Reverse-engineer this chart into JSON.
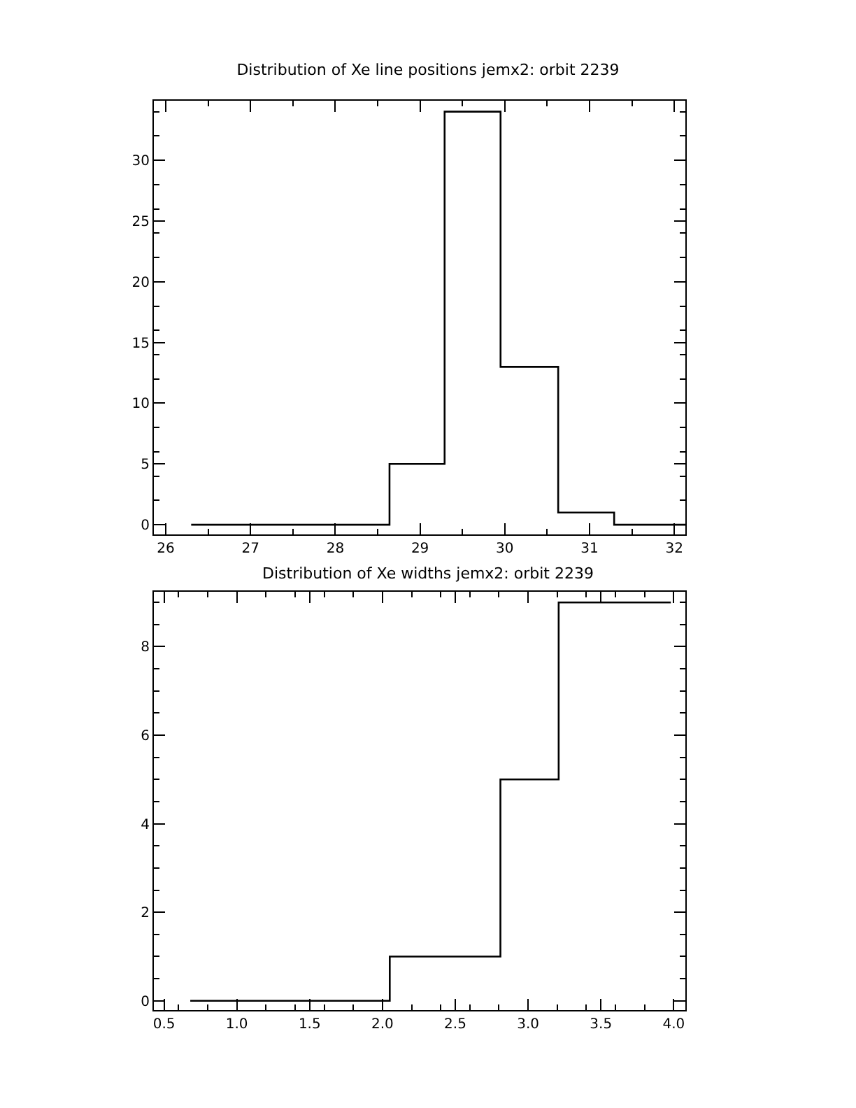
{
  "chart_data": [
    {
      "type": "histogram",
      "title": "Distribution of Xe line positions jemx2: orbit 2239",
      "bins": [
        26.3,
        28.64,
        29.29,
        29.95,
        30.63,
        31.29,
        32.13
      ],
      "values": [
        0,
        5,
        34,
        13,
        1,
        0
      ],
      "color": "#000000",
      "xlim": [
        25.86,
        32.13
      ],
      "xticks": [
        26,
        27,
        28,
        29,
        30,
        31,
        32
      ],
      "ylim": [
        -0.8,
        34.9
      ],
      "yticks": [
        0,
        5,
        10,
        15,
        20,
        25,
        30
      ],
      "grid": false,
      "legend": false
    },
    {
      "type": "histogram",
      "title": "Distribution of Xe widths jemx2: orbit 2239",
      "bins": [
        0.68,
        2.05,
        2.81,
        3.21,
        3.98
      ],
      "values": [
        0,
        1,
        5,
        9
      ],
      "color": "#000000",
      "xlim": [
        0.43,
        4.08
      ],
      "xticks": [
        {
          "value": 0.5,
          "label": "0.5"
        },
        {
          "value": 1,
          "label": "1.0"
        },
        {
          "value": 1.5,
          "label": "1.5"
        },
        {
          "value": 2,
          "label": "2.0"
        },
        {
          "value": 2.5,
          "label": "2.5"
        },
        {
          "value": 3,
          "label": "3.0"
        },
        {
          "value": 3.5,
          "label": "3.5"
        },
        {
          "value": 4,
          "label": "4.0"
        }
      ],
      "ylim": [
        -0.21,
        9.24
      ],
      "yticks": [
        0,
        2,
        4,
        6,
        8
      ],
      "grid": false,
      "legend": false
    }
  ]
}
